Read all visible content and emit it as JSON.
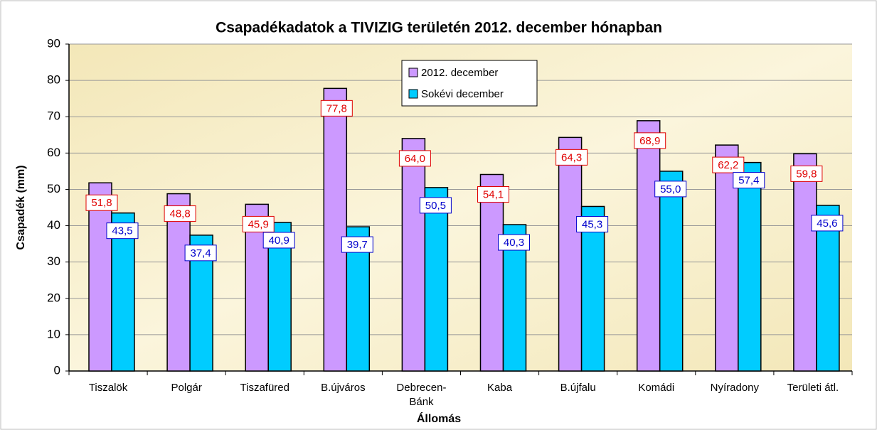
{
  "chart_data": {
    "type": "bar",
    "title": "Csapadékadatok a TIVIZIG területén 2012. december hónapban",
    "x_label": "Állomás",
    "y_label": "Csapadék (mm)",
    "categories": [
      "Tiszalök",
      "Polgár",
      "Tiszafüred",
      "B.újváros",
      "Debrecen-Bánk",
      "Kaba",
      "B.újfalu",
      "Komádi",
      "Nyíradony",
      "Területi átl."
    ],
    "series": [
      {
        "name": "2012. december",
        "color": "#cc99ff",
        "values": [
          51.8,
          48.8,
          45.9,
          77.8,
          64.0,
          54.1,
          64.3,
          68.9,
          62.2,
          59.8
        ],
        "value_labels": [
          "51,8",
          "48,8",
          "45,9",
          "77,8",
          "64,0",
          "54,1",
          "64,3",
          "68,9",
          "62,2",
          "59,8"
        ],
        "label_color": "#e00000"
      },
      {
        "name": "Sokévi december",
        "color": "#00ccff",
        "values": [
          43.5,
          37.4,
          40.9,
          39.7,
          50.5,
          40.3,
          45.3,
          55.0,
          57.4,
          45.6
        ],
        "value_labels": [
          "43,5",
          "37,4",
          "40,9",
          "39,7",
          "50,5",
          "40,3",
          "45,3",
          "55,0",
          "57,4",
          "45,6"
        ],
        "label_color": "#0000cc"
      }
    ],
    "ylim": [
      0,
      90
    ],
    "yticks": [
      0,
      10,
      20,
      30,
      40,
      50,
      60,
      70,
      80,
      90
    ],
    "grid": true,
    "legend": "top"
  }
}
